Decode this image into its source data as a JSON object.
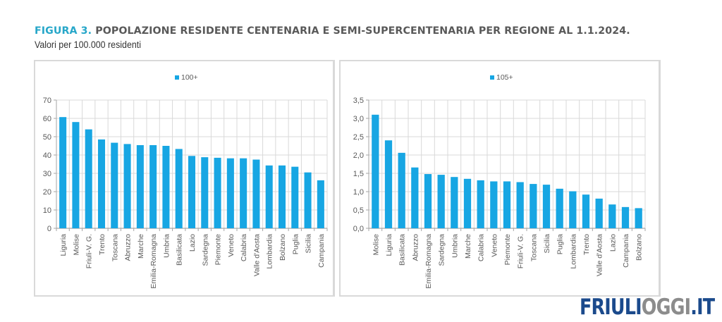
{
  "header": {
    "figure_label": "FIGURA 3.",
    "title": "POPOLAZIONE RESIDENTE CENTENARIA E SEMI-SUPERCENTENARIA PER REGIONE AL 1.1.2024.",
    "subtitle": "Valori per 100.000 residenti"
  },
  "logo": {
    "part1": "FRIULI",
    "part2": "OGGI",
    "part3": ".IT"
  },
  "colors": {
    "bar": "#17a6e3",
    "accent": "#27a7c9",
    "grid": "#d9d9d9",
    "axis": "#a6a6a6",
    "text": "#595959"
  },
  "chart_data": [
    {
      "type": "bar",
      "title": "",
      "legend": [
        "100+"
      ],
      "legend_position": "top-center",
      "xlabel": "",
      "ylabel": "",
      "ylim": [
        0,
        70
      ],
      "yticks": [
        "0",
        "10",
        "20",
        "30",
        "40",
        "50",
        "60",
        "70"
      ],
      "grid": true,
      "categories": [
        "Liguria",
        "Molise",
        "Friuli-V. G.",
        "Trento",
        "Toscana",
        "Abruzzo",
        "Marche",
        "Emilia-Romagna",
        "Umbria",
        "Basilicata",
        "Lazio",
        "Sardegna",
        "Piemonte",
        "Veneto",
        "Calabria",
        "Valle d'Aosta",
        "Lombardia",
        "Bolzano",
        "Puglia",
        "Sicilia",
        "Campania"
      ],
      "series": [
        {
          "name": "100+",
          "values": [
            60.7,
            58.0,
            54.0,
            48.5,
            46.7,
            46.0,
            45.4,
            45.4,
            45.0,
            43.3,
            39.5,
            38.8,
            38.5,
            38.2,
            38.2,
            37.5,
            34.3,
            34.3,
            33.6,
            30.5,
            26.2
          ]
        }
      ]
    },
    {
      "type": "bar",
      "title": "",
      "legend": [
        "105+"
      ],
      "legend_position": "top-center",
      "xlabel": "",
      "ylabel": "",
      "ylim": [
        0,
        3.5
      ],
      "yticks": [
        "0,0",
        "0,5",
        "1,0",
        "1,5",
        "2,0",
        "2,5",
        "3,0",
        "3,5"
      ],
      "grid": true,
      "categories": [
        "Molise",
        "Liguria",
        "Basilicata",
        "Abruzzo",
        "Emilia-Romagna",
        "Sardegna",
        "Umbria",
        "Marche",
        "Calabria",
        "Veneto",
        "Piemonte",
        "Friuli-V. G.",
        "Toscana",
        "Sicilia",
        "Puglia",
        "Lombardia",
        "Trento",
        "Valle d'Aosta",
        "Lazio",
        "Campania",
        "Bolzano"
      ],
      "series": [
        {
          "name": "105+",
          "values": [
            3.1,
            2.4,
            2.06,
            1.66,
            1.48,
            1.46,
            1.4,
            1.35,
            1.31,
            1.28,
            1.28,
            1.26,
            1.21,
            1.19,
            1.08,
            1.01,
            0.92,
            0.81,
            0.65,
            0.58,
            0.55
          ]
        }
      ]
    }
  ]
}
